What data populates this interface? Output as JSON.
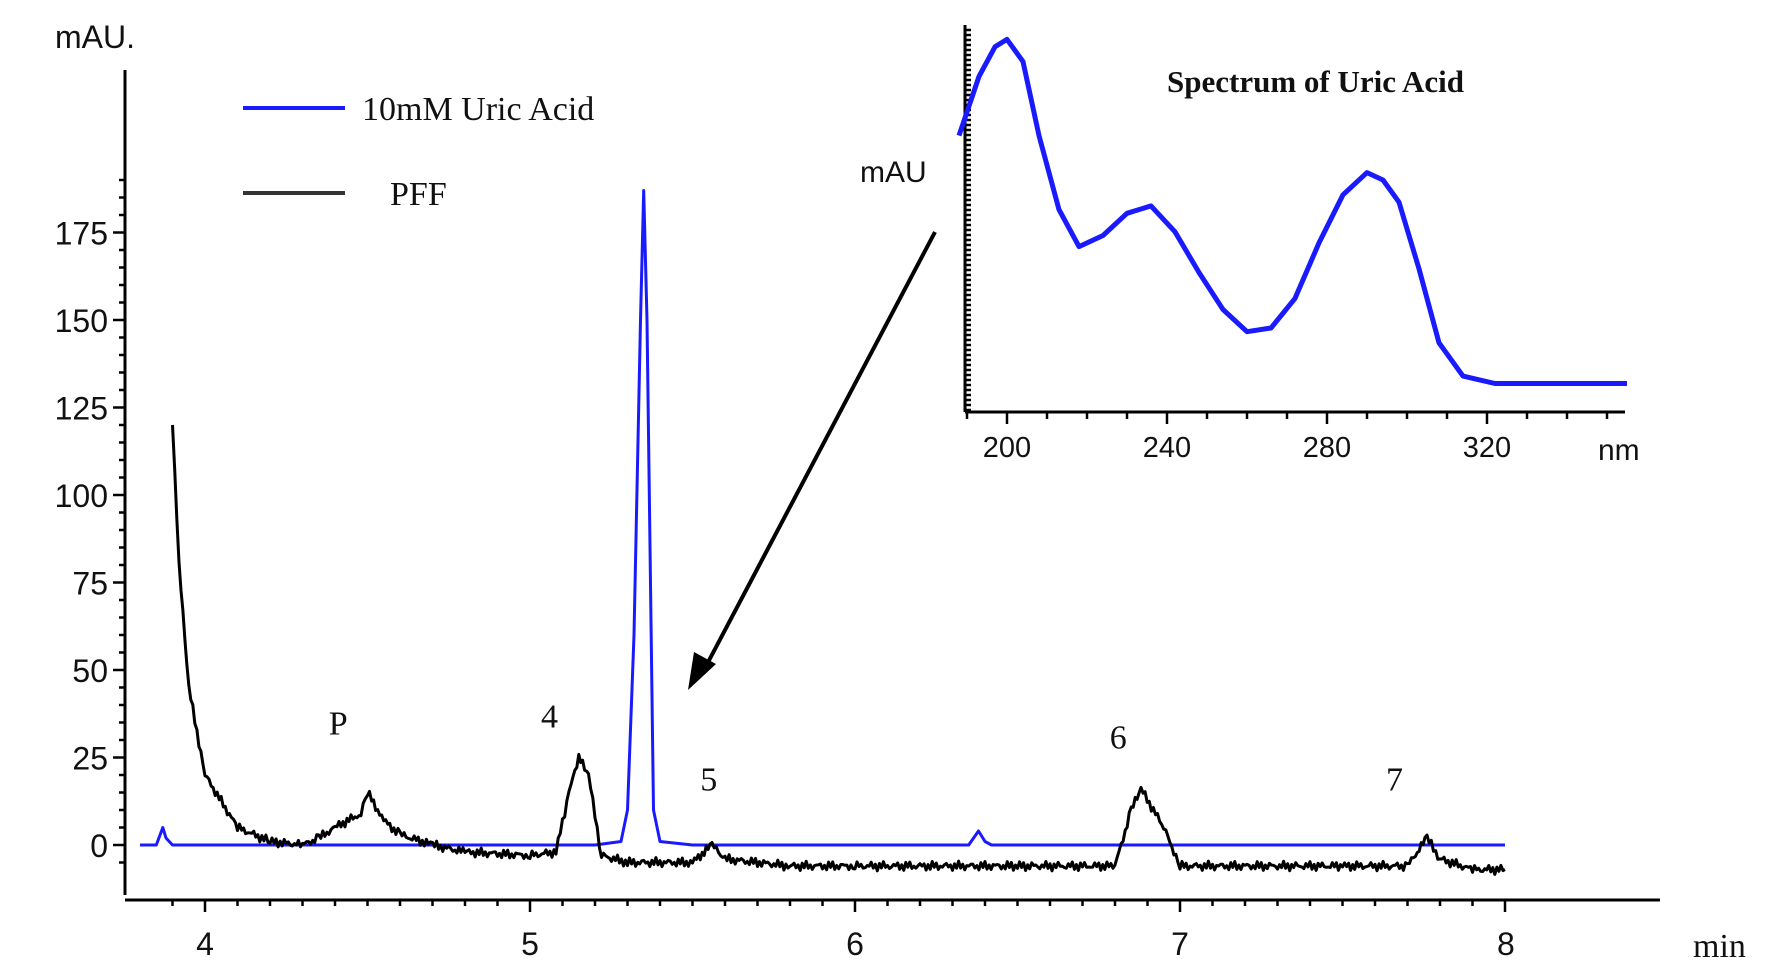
{
  "chart_data": [
    {
      "type": "line",
      "ylabel": "mAU.",
      "xunit": "min",
      "xlim": [
        3.8,
        8.0
      ],
      "ylim": [
        -10,
        195
      ],
      "xticks": [
        4,
        5,
        6,
        7,
        8
      ],
      "yticks": [
        0,
        25,
        50,
        75,
        100,
        125,
        150,
        175
      ],
      "legend_position": "top-left",
      "series": [
        {
          "name": "10mM Uric Acid",
          "color": "#1a1aff",
          "x": [
            3.8,
            3.85,
            3.87,
            3.88,
            3.9,
            4.0,
            4.5,
            5.0,
            5.2,
            5.28,
            5.3,
            5.32,
            5.34,
            5.35,
            5.36,
            5.38,
            5.4,
            5.5,
            5.7,
            6.0,
            6.35,
            6.38,
            6.4,
            6.42,
            7.0,
            7.5,
            8.0
          ],
          "y": [
            0,
            0,
            5,
            2,
            0,
            0,
            0,
            0,
            0,
            1,
            10,
            60,
            150,
            187,
            150,
            10,
            1,
            0,
            0,
            0,
            0,
            4,
            1,
            0,
            0,
            0,
            0
          ]
        },
        {
          "name": "PFF",
          "color": "#000000",
          "x": [
            3.9,
            3.92,
            3.95,
            4.0,
            4.1,
            4.2,
            4.3,
            4.35,
            4.4,
            4.48,
            4.5,
            4.55,
            4.6,
            4.7,
            4.8,
            5.0,
            5.08,
            5.12,
            5.15,
            5.18,
            5.22,
            5.3,
            5.5,
            5.56,
            5.6,
            5.8,
            6.0,
            6.5,
            6.8,
            6.85,
            6.88,
            6.95,
            7.0,
            7.5,
            7.7,
            7.76,
            7.8,
            7.9,
            8.0
          ],
          "y": [
            120,
            80,
            45,
            20,
            5,
            1,
            0,
            2,
            5,
            9,
            15,
            7,
            3,
            0,
            -2,
            -3,
            -2,
            15,
            25,
            20,
            -3,
            -5,
            -5,
            0,
            -4,
            -6,
            -6,
            -6,
            -6,
            10,
            16,
            5,
            -6,
            -6,
            -6,
            2,
            -4,
            -7,
            -7
          ]
        }
      ],
      "annotations": [
        {
          "text": "P",
          "x": 4.41,
          "y": 35
        },
        {
          "text": "4",
          "x": 5.06,
          "y": 37
        },
        {
          "text": "5",
          "x": 5.55,
          "y": 19
        },
        {
          "text": "6",
          "x": 6.81,
          "y": 31
        },
        {
          "text": "7",
          "x": 7.66,
          "y": 19
        }
      ]
    },
    {
      "type": "line",
      "title": "Spectrum of Uric Acid",
      "ylabel": "mAU",
      "xunit": "nm",
      "xlim": [
        188,
        355
      ],
      "ylim": [
        0,
        100
      ],
      "xticks": [
        200,
        240,
        280,
        320
      ],
      "series": [
        {
          "color": "#1a1aff",
          "x": [
            188,
            193,
            197,
            200,
            204,
            208,
            213,
            218,
            224,
            230,
            236,
            242,
            248,
            254,
            260,
            266,
            272,
            278,
            284,
            290,
            294,
            298,
            303,
            308,
            314,
            322,
            330,
            340,
            350,
            355
          ],
          "y": [
            72,
            88,
            96,
            98,
            92,
            72,
            52,
            42,
            45,
            51,
            53,
            46,
            35,
            25,
            19,
            20,
            28,
            43,
            56,
            62,
            60,
            54,
            36,
            16,
            7,
            5,
            5,
            5,
            5,
            5
          ]
        }
      ]
    }
  ]
}
